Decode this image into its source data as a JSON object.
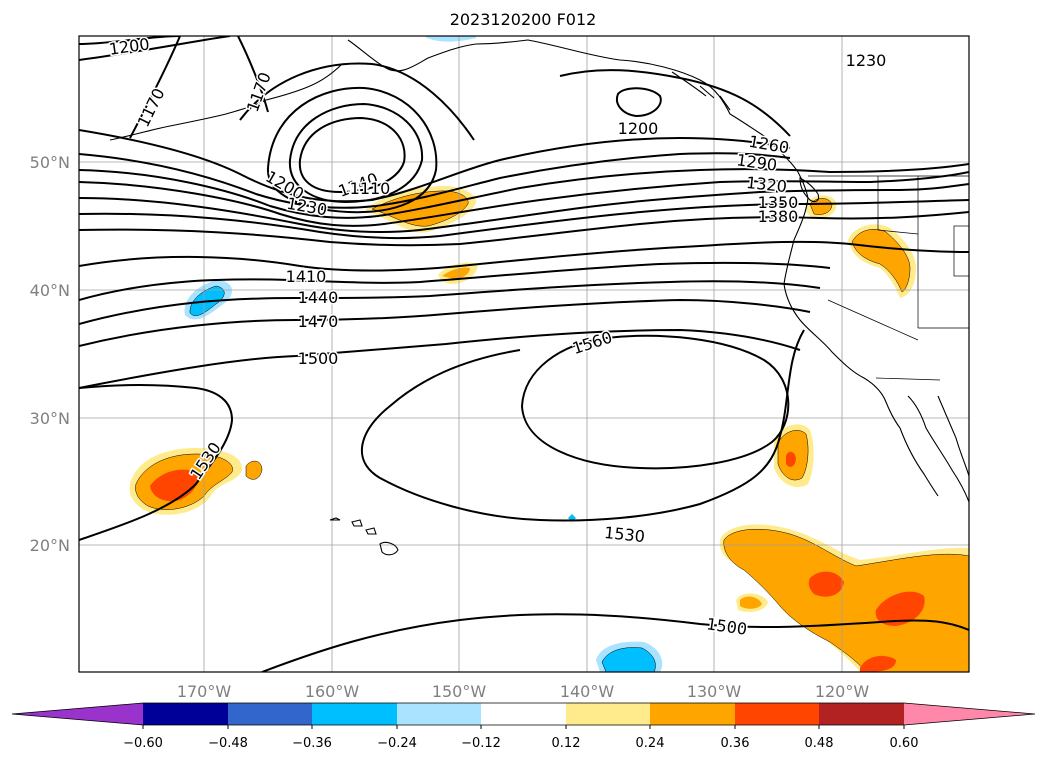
{
  "title": "2023120200 F012",
  "map": {
    "lat_labels": [
      "50°N",
      "40°N",
      "30°N",
      "20°N"
    ],
    "lon_labels": [
      "170°W",
      "160°W",
      "150°W",
      "140°W",
      "130°W",
      "120°W"
    ]
  },
  "colorbar": {
    "ticks": [
      "−0.60",
      "−0.48",
      "−0.36",
      "−0.24",
      "−0.12",
      "0.12",
      "0.24",
      "0.36",
      "0.48",
      "0.60"
    ],
    "colors": [
      "#9933cc",
      "#000099",
      "#3366cc",
      "#00bfff",
      "#aae3ff",
      "#ffffff",
      "#ffeb8c",
      "#ffa500",
      "#ff4500",
      "#b22222",
      "#ff88aa"
    ]
  },
  "contour_labels": [
    "1200",
    "1170",
    "1170",
    "1230",
    "1200",
    "1260",
    "1290",
    "1320",
    "1350",
    "1380",
    "1200",
    "1230",
    "1140",
    "1110",
    "1410",
    "1440",
    "1470",
    "1500",
    "1560",
    "1530",
    "1530",
    "1500"
  ]
}
